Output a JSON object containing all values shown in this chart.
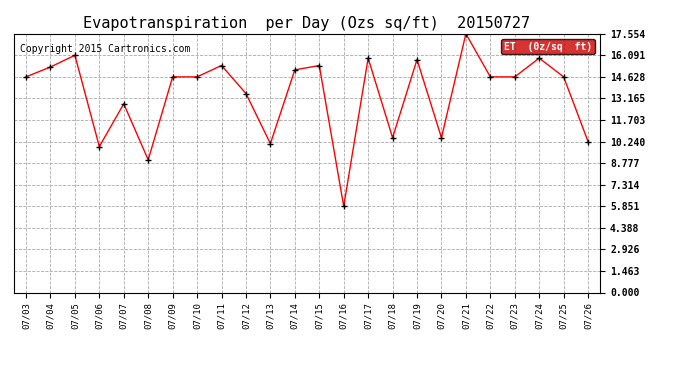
{
  "title": "Evapotranspiration  per Day (Ozs sq/ft)  20150727",
  "copyright": "Copyright 2015 Cartronics.com",
  "legend_label": "ET  (0z/sq  ft)",
  "dates": [
    "07/03",
    "07/04",
    "07/05",
    "07/06",
    "07/07",
    "07/08",
    "07/09",
    "07/10",
    "07/11",
    "07/12",
    "07/13",
    "07/14",
    "07/15",
    "07/16",
    "07/17",
    "07/18",
    "07/19",
    "07/20",
    "07/21",
    "07/22",
    "07/23",
    "07/24",
    "07/25",
    "07/26"
  ],
  "values": [
    14.628,
    15.3,
    16.091,
    9.9,
    12.8,
    9.0,
    14.628,
    14.628,
    15.4,
    13.5,
    10.1,
    15.1,
    15.4,
    5.851,
    15.9,
    10.5,
    15.8,
    10.5,
    17.554,
    14.628,
    14.628,
    15.9,
    14.628,
    10.24
  ],
  "yticks": [
    0.0,
    1.463,
    2.926,
    4.388,
    5.851,
    7.314,
    8.777,
    10.24,
    11.703,
    13.165,
    14.628,
    16.091,
    17.554
  ],
  "line_color": "red",
  "marker_color": "black",
  "bg_color": "#ffffff",
  "plot_bg_color": "#ffffff",
  "grid_color": "#aaaaaa",
  "title_fontsize": 11,
  "copyright_fontsize": 7,
  "ylim": [
    0.0,
    17.554
  ],
  "legend_bg": "#cc0000",
  "legend_text_color": "#ffffff"
}
